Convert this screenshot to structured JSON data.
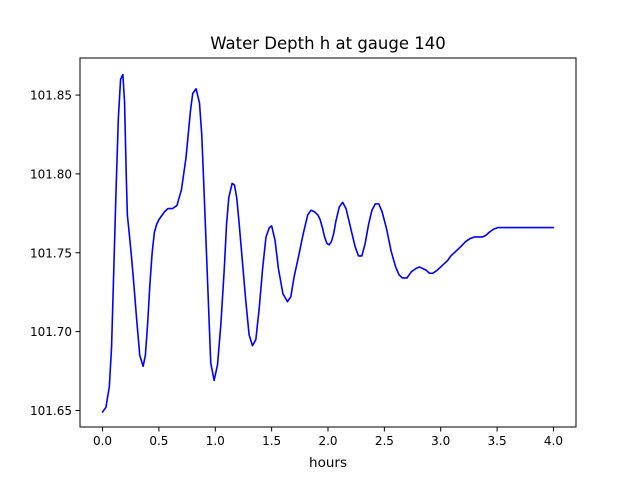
{
  "chart_data": {
    "type": "line",
    "title": "Water Depth h at gauge 140",
    "xlabel": "hours",
    "ylabel": "",
    "xlim": [
      -0.2,
      4.2
    ],
    "ylim": [
      101.6395,
      101.8735
    ],
    "xticks": [
      0.0,
      0.5,
      1.0,
      1.5,
      2.0,
      2.5,
      3.0,
      3.5,
      4.0
    ],
    "xtick_labels": [
      "0.0",
      "0.5",
      "1.0",
      "1.5",
      "2.0",
      "2.5",
      "3.0",
      "3.5",
      "4.0"
    ],
    "yticks": [
      101.65,
      101.7,
      101.75,
      101.8,
      101.85
    ],
    "ytick_labels": [
      "101.65",
      "101.70",
      "101.75",
      "101.80",
      "101.85"
    ],
    "grid": false,
    "series": [
      {
        "color": "#0000ff",
        "x": [
          0.0,
          0.03,
          0.06,
          0.08,
          0.1,
          0.12,
          0.14,
          0.16,
          0.18,
          0.195,
          0.21,
          0.22,
          0.24,
          0.26,
          0.28,
          0.3,
          0.33,
          0.36,
          0.38,
          0.4,
          0.42,
          0.44,
          0.46,
          0.48,
          0.5,
          0.52,
          0.55,
          0.58,
          0.62,
          0.66,
          0.7,
          0.74,
          0.76,
          0.78,
          0.8,
          0.83,
          0.86,
          0.88,
          0.9,
          0.93,
          0.96,
          0.99,
          1.02,
          1.05,
          1.08,
          1.1,
          1.12,
          1.15,
          1.17,
          1.19,
          1.21,
          1.24,
          1.27,
          1.3,
          1.33,
          1.36,
          1.39,
          1.42,
          1.45,
          1.48,
          1.5,
          1.53,
          1.56,
          1.6,
          1.64,
          1.67,
          1.7,
          1.74,
          1.78,
          1.82,
          1.85,
          1.88,
          1.91,
          1.93,
          1.95,
          1.97,
          1.99,
          2.01,
          2.03,
          2.05,
          2.07,
          2.1,
          2.13,
          2.16,
          2.2,
          2.24,
          2.27,
          2.3,
          2.33,
          2.36,
          2.39,
          2.42,
          2.45,
          2.48,
          2.52,
          2.56,
          2.6,
          2.63,
          2.66,
          2.7,
          2.74,
          2.78,
          2.81,
          2.84,
          2.87,
          2.9,
          2.93,
          2.95,
          2.97,
          3.0,
          3.03,
          3.06,
          3.09,
          3.12,
          3.15,
          3.18,
          3.22,
          3.26,
          3.3,
          3.34,
          3.37,
          3.4,
          3.43,
          3.47,
          3.51,
          3.55,
          3.6,
          3.65,
          3.7,
          3.75,
          3.8,
          3.85,
          3.9,
          3.93,
          3.96,
          4.0
        ],
        "y": [
          101.649,
          101.652,
          101.665,
          101.69,
          101.74,
          101.79,
          101.835,
          101.86,
          101.863,
          101.846,
          101.8,
          101.774,
          101.76,
          101.745,
          101.728,
          101.71,
          101.685,
          101.678,
          101.685,
          101.705,
          101.73,
          101.75,
          101.763,
          101.768,
          101.771,
          101.773,
          101.776,
          101.778,
          101.778,
          101.78,
          101.79,
          101.81,
          101.825,
          101.84,
          101.851,
          101.854,
          101.845,
          101.825,
          101.79,
          101.735,
          101.68,
          101.669,
          101.679,
          101.705,
          101.74,
          101.768,
          101.785,
          101.794,
          101.793,
          101.785,
          101.77,
          101.745,
          101.72,
          101.698,
          101.691,
          101.695,
          101.715,
          101.74,
          101.76,
          101.766,
          101.767,
          101.758,
          101.74,
          101.724,
          101.719,
          101.722,
          101.735,
          101.748,
          101.762,
          101.774,
          101.777,
          101.776,
          101.774,
          101.771,
          101.766,
          101.76,
          101.756,
          101.755,
          101.757,
          101.762,
          101.77,
          101.779,
          101.782,
          101.778,
          101.766,
          101.754,
          101.748,
          101.748,
          101.756,
          101.768,
          101.777,
          101.781,
          101.781,
          101.776,
          101.765,
          101.751,
          101.741,
          101.736,
          101.734,
          101.734,
          101.738,
          101.74,
          101.741,
          101.74,
          101.739,
          101.737,
          101.737,
          101.738,
          101.739,
          101.741,
          101.743,
          101.745,
          101.748,
          101.75,
          101.752,
          101.754,
          101.757,
          101.759,
          101.76,
          101.76,
          101.76,
          101.761,
          101.763,
          101.765,
          101.766,
          101.766,
          101.766,
          101.766,
          101.766,
          101.766,
          101.766,
          101.766,
          101.766,
          101.766,
          101.766,
          101.766
        ]
      }
    ]
  }
}
